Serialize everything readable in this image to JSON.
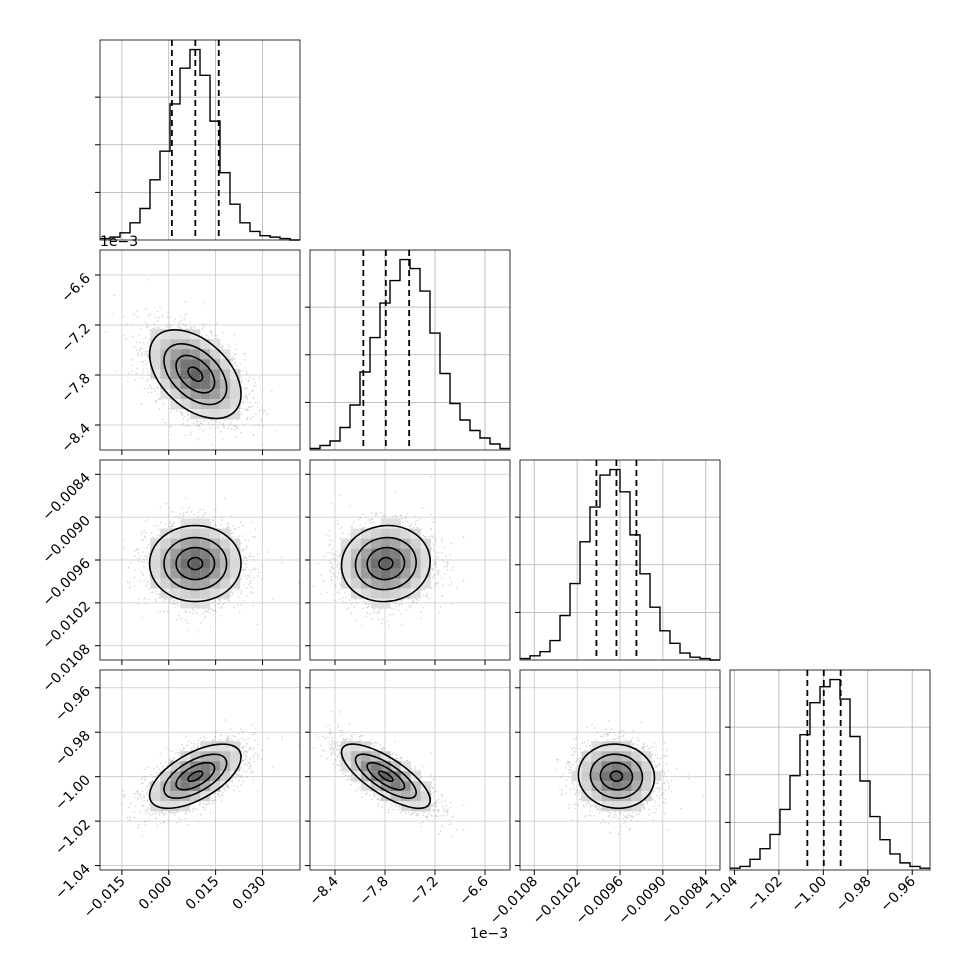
{
  "chart_data": {
    "type": "corner",
    "num_params": 4,
    "grid": true,
    "quantile_lines": "dashed",
    "params": [
      {
        "range": [
          -0.022,
          0.042
        ],
        "ticks": [
          {
            "value": -0.015,
            "label": "−0.015"
          },
          {
            "value": 0.0,
            "label": "0.000"
          },
          {
            "value": 0.015,
            "label": "0.015"
          },
          {
            "value": 0.03,
            "label": "0.030"
          }
        ],
        "offset_text": "",
        "quantiles": [
          0.001,
          0.0085,
          0.016
        ],
        "hist_counts": [
          1,
          2,
          5,
          12,
          22,
          42,
          62,
          95,
          120,
          133,
          115,
          83,
          47,
          25,
          12,
          6,
          3,
          2,
          1,
          0
        ]
      },
      {
        "range": [
          -8.7,
          -6.3
        ],
        "ticks": [
          {
            "value": -8.4,
            "label": "−8.4"
          },
          {
            "value": -7.8,
            "label": "−7.8"
          },
          {
            "value": -7.2,
            "label": "−7.2"
          },
          {
            "value": -6.6,
            "label": "−6.6"
          }
        ],
        "offset_text": "1e−3",
        "quantiles": [
          -8.06,
          -7.79,
          -7.51
        ],
        "hist_counts": [
          1,
          3,
          6,
          15,
          30,
          52,
          75,
          98,
          113,
          127,
          121,
          106,
          78,
          51,
          31,
          20,
          13,
          8,
          4,
          1
        ]
      },
      {
        "range": [
          -0.011,
          -0.0082
        ],
        "ticks": [
          {
            "value": -0.0108,
            "label": "−0.0108"
          },
          {
            "value": -0.0102,
            "label": "−0.0102"
          },
          {
            "value": -0.0096,
            "label": "−0.0096"
          },
          {
            "value": -0.009,
            "label": "−0.0090"
          },
          {
            "value": -0.0084,
            "label": "−0.0084"
          }
        ],
        "offset_text": "",
        "quantiles": [
          -0.00993,
          -0.00965,
          -0.00937
        ],
        "hist_counts": [
          1,
          3,
          6,
          14,
          32,
          55,
          85,
          110,
          133,
          137,
          121,
          90,
          62,
          38,
          21,
          12,
          5,
          2,
          1,
          0
        ]
      },
      {
        "range": [
          -1.042,
          -0.952
        ],
        "ticks": [
          {
            "value": -1.04,
            "label": "−1.04"
          },
          {
            "value": -1.02,
            "label": "−1.02"
          },
          {
            "value": -1.0,
            "label": "−1.00"
          },
          {
            "value": -0.98,
            "label": "−0.98"
          },
          {
            "value": -0.96,
            "label": "−0.96"
          }
        ],
        "offset_text": "",
        "quantiles": [
          -1.0072,
          -0.9998,
          -0.9922
        ],
        "hist_counts": [
          1,
          2,
          6,
          12,
          20,
          34,
          53,
          76,
          94,
          103,
          107,
          96,
          75,
          50,
          30,
          17,
          9,
          4,
          2,
          1
        ]
      }
    ],
    "pairs": [
      {
        "row": 1,
        "col": 0,
        "mean": [
          0.0085,
          -7.79
        ],
        "sd": [
          0.0077,
          0.28
        ],
        "rho": -0.45
      },
      {
        "row": 2,
        "col": 0,
        "mean": [
          0.0085,
          -0.00965
        ],
        "sd": [
          0.0077,
          0.00028
        ],
        "rho": 0.0
      },
      {
        "row": 2,
        "col": 1,
        "mean": [
          -7.79,
          -0.00965
        ],
        "sd": [
          0.28,
          0.00028
        ],
        "rho": 0.05
      },
      {
        "row": 3,
        "col": 0,
        "mean": [
          0.0085,
          -0.9998
        ],
        "sd": [
          0.0077,
          0.0076
        ],
        "rho": 0.6
      },
      {
        "row": 3,
        "col": 1,
        "mean": [
          -7.79,
          -0.9998
        ],
        "sd": [
          0.28,
          0.0076
        ],
        "rho": -0.75
      },
      {
        "row": 3,
        "col": 2,
        "mean": [
          -0.00965,
          -0.9998
        ],
        "sd": [
          0.00028,
          0.0076
        ],
        "rho": -0.05
      }
    ]
  }
}
